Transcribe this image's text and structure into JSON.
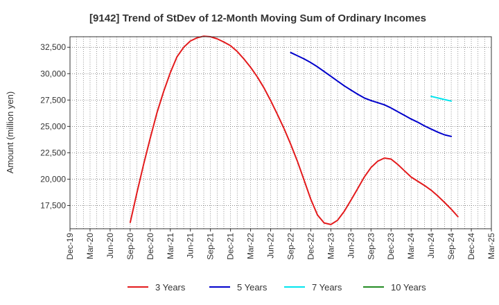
{
  "chart_data": {
    "type": "line",
    "title": "[9142]  Trend of StDev of 12-Month Moving Sum of Ordinary Incomes",
    "xlabel": "",
    "ylabel": "Amount (million yen)",
    "ylim": [
      15300,
      33500
    ],
    "y_ticks": [
      17500,
      20000,
      22500,
      25000,
      27500,
      30000,
      32500
    ],
    "y_tick_labels": [
      "17,500",
      "20,000",
      "22,500",
      "25,000",
      "27,500",
      "30,000",
      "32,500"
    ],
    "x_tick_labels": [
      "Dec-19",
      "Mar-20",
      "Jun-20",
      "Sep-20",
      "Dec-20",
      "Mar-21",
      "Jun-21",
      "Sep-21",
      "Dec-21",
      "Mar-22",
      "Jun-22",
      "Sep-22",
      "Dec-22",
      "Mar-23",
      "Jun-23",
      "Sep-23",
      "Dec-23",
      "Mar-24",
      "Jun-24",
      "Sep-24",
      "Dec-24",
      "Mar-25"
    ],
    "grid": true,
    "legend_position": "bottom",
    "series": [
      {
        "name": "3 Years",
        "color": "#e31a1c",
        "start_index": 9,
        "values": [
          15900,
          18700,
          21400,
          23900,
          26300,
          28300,
          30100,
          31600,
          32500,
          33100,
          33400,
          33550,
          33500,
          33300,
          33000,
          32650,
          32100,
          31400,
          30600,
          29700,
          28650,
          27450,
          26150,
          24800,
          23300,
          21700,
          19900,
          18100,
          16600,
          15850,
          15700,
          16100,
          16950,
          18000,
          19100,
          20200,
          21100,
          21700,
          22000,
          21900,
          21400,
          20800,
          20200,
          19800,
          19400,
          18950,
          18400,
          17800,
          17150,
          16450
        ]
      },
      {
        "name": "5 Years",
        "color": "#0000cc",
        "start_index": 33,
        "values": [
          32000,
          31700,
          31400,
          31050,
          30650,
          30200,
          29750,
          29300,
          28850,
          28450,
          28050,
          27700,
          27450,
          27250,
          27050,
          26750,
          26400,
          26050,
          25700,
          25400,
          25050,
          24750,
          24450,
          24200,
          24050
        ]
      },
      {
        "name": "7 Years",
        "color": "#00e5ee",
        "start_index": 54,
        "values": [
          27850,
          27700,
          27550,
          27400
        ]
      },
      {
        "name": "10 Years",
        "color": "#228b22",
        "start_index": 0,
        "values": []
      }
    ]
  }
}
